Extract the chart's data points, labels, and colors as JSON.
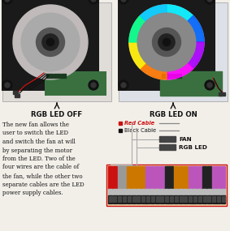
{
  "bg_color": "#f2efe9",
  "title_left": "RGB LED OFF",
  "title_right": "RGB LED ON",
  "legend_red_label": "Red Cable",
  "legend_black_label": "Black Cable",
  "label_fan": "FAN",
  "label_rgb": "RGB LED",
  "body_text_lines": [
    "The new fan allows the",
    "user to switch the LED",
    "and switch the fan at will",
    "by separating the motor",
    "from the LED. Two of the",
    "four wires are the cable of",
    "the fan, while the other two",
    "separate cables are the LED",
    "power supply cables."
  ],
  "pin_colors": [
    "#cc1111",
    "#cc1111",
    "#999999",
    "#999999",
    "#cc7700",
    "#cc7700",
    "#cc7700",
    "#cc7700",
    "#bb55bb",
    "#bb55bb",
    "#bb55bb",
    "#bb55bb",
    "#222222",
    "#222222",
    "#cc7700",
    "#cc7700",
    "#cc7700",
    "#bb55bb",
    "#bb55bb",
    "#bb55bb",
    "#222222",
    "#222222",
    "#bb55bb",
    "#bb55bb",
    "#bb55bb"
  ],
  "box_left_bg": "#e8e4e0",
  "box_right_bg": "#dde0e4",
  "fan_bg_color": "#c0baba",
  "fan_dark": "#1a1a1a",
  "fan_mid": "#5a5a5a",
  "fan_light": "#909090",
  "pcb_color": "#3a7040",
  "rgb_colors": [
    "#00eeff",
    "#0066ff",
    "#aa00ff",
    "#ff00ff",
    "#ff7700",
    "#ffee00",
    "#00ff88",
    "#00ccff"
  ],
  "outline_red": "#cc1111",
  "wire_gray": "#aaaaaa",
  "connector_dark": "#444444",
  "pin_gray_bg": "#bbbbbb",
  "pin_black_bg": "#1a1a1a"
}
